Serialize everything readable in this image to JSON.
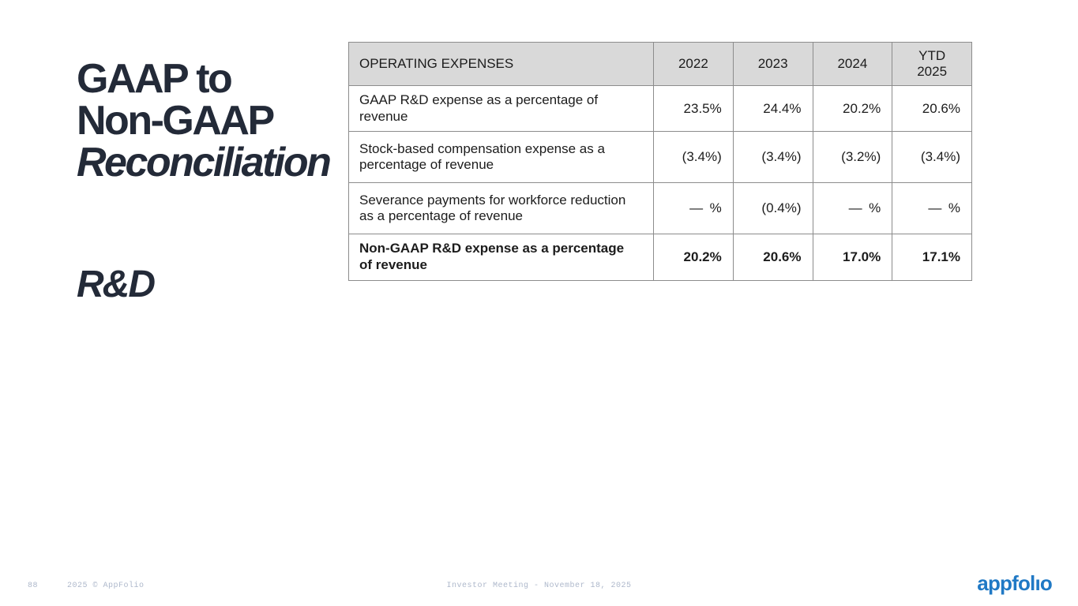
{
  "slide": {
    "title_line1": "GAAP to",
    "title_line2": "Non-GAAP",
    "title_line3": "Reconciliation",
    "subtitle": "R&D"
  },
  "table": {
    "headers": [
      "OPERATING EXPENSES",
      "2022",
      "2023",
      "2024",
      "YTD\n2025"
    ],
    "rows": [
      {
        "label": "GAAP R&D expense as a percentage of revenue",
        "values": [
          "23.5%",
          "24.4%",
          "20.2%",
          "20.6%"
        ],
        "bold": false
      },
      {
        "label": "Stock-based compensation expense as a percentage of revenue",
        "values": [
          "(3.4%)",
          "(3.4%)",
          "(3.2%)",
          "(3.4%)"
        ],
        "bold": false
      },
      {
        "label": "Severance payments for workforce reduction as a percentage of revenue",
        "values": [
          "— %",
          "(0.4%)",
          "— %",
          "— %"
        ],
        "bold": false
      },
      {
        "label": "Non-GAAP R&D expense as a percentage of revenue",
        "values": [
          "20.2%",
          "20.6%",
          "17.0%",
          "17.1%"
        ],
        "bold": true
      }
    ]
  },
  "footer": {
    "page_number": "88",
    "copyright": "2025 © AppFolio",
    "center_text": "Investor Meeting - November 18, 2025",
    "logo_text": "appfolıo"
  },
  "colors": {
    "title_navy": "#232a38",
    "table_header_bg": "#d9d9d9",
    "table_border": "#8c8c8c",
    "footer_gray_blue": "#aeb8cb",
    "logo_blue": "#2079c5"
  }
}
